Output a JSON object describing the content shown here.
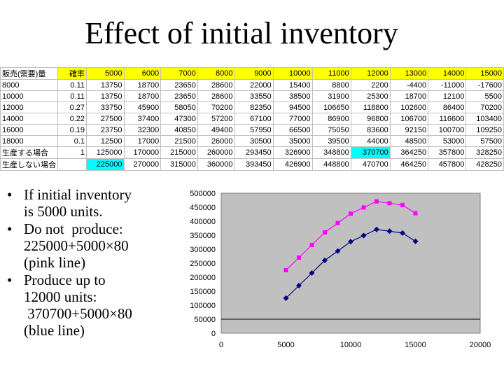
{
  "title": "Effect of initial inventory",
  "table": {
    "header": [
      "販売(需要)量",
      "確率",
      "5000",
      "6000",
      "7000",
      "8000",
      "9000",
      "10000",
      "11000",
      "12000",
      "13000",
      "14000",
      "15000"
    ],
    "rows": [
      [
        "8000",
        "0.11",
        "13750",
        "18700",
        "23650",
        "28600",
        "22000",
        "15400",
        "8800",
        "2200",
        "-4400",
        "-11000",
        "-17600"
      ],
      [
        "10000",
        "0.11",
        "13750",
        "18700",
        "23650",
        "28600",
        "33550",
        "38500",
        "31900",
        "25300",
        "18700",
        "12100",
        "5500"
      ],
      [
        "12000",
        "0.27",
        "33750",
        "45900",
        "58050",
        "70200",
        "82350",
        "94500",
        "106650",
        "118800",
        "102600",
        "86400",
        "70200"
      ],
      [
        "14000",
        "0.22",
        "27500",
        "37400",
        "47300",
        "57200",
        "67100",
        "77000",
        "86900",
        "96800",
        "106700",
        "116600",
        "103400"
      ],
      [
        "16000",
        "0.19",
        "23750",
        "32300",
        "40850",
        "49400",
        "57950",
        "66500",
        "75050",
        "83600",
        "92150",
        "100700",
        "109250"
      ],
      [
        "18000",
        "0.1",
        "12500",
        "17000",
        "21500",
        "26000",
        "30500",
        "35000",
        "39500",
        "44000",
        "48500",
        "53000",
        "57500"
      ],
      [
        "生産する場合",
        "1",
        "125000",
        "170000",
        "215000",
        "260000",
        "293450",
        "326900",
        "348800",
        "370700",
        "364250",
        "357800",
        "328250"
      ],
      [
        "生産しない場合",
        "",
        "225000",
        "270000",
        "315000",
        "360000",
        "393450",
        "426900",
        "448800",
        "470700",
        "464250",
        "457800",
        "428250"
      ]
    ]
  },
  "bullets": [
    {
      "lines": [
        "If initial inventory",
        "is 5000 units."
      ]
    },
    {
      "lines": [
        "Do not  produce:",
        "225000+5000×80",
        "(pink line)"
      ]
    },
    {
      "lines": [
        "Produce up to",
        "12000 units:",
        " 370700+5000×80",
        "(blue line)"
      ]
    }
  ],
  "colors": {
    "highlight_yellow": "#ffff00",
    "highlight_cyan": "#00ffff",
    "plot_bg": "#c0c0c0",
    "pink_series": "#ff00ff",
    "blue_series": "#000080"
  },
  "chart_data": {
    "type": "line",
    "title": "",
    "xlabel": "",
    "ylabel": "",
    "xlim": [
      0,
      20000
    ],
    "ylim": [
      0,
      500000
    ],
    "x_ticks": [
      "0",
      "5000",
      "10000",
      "15000",
      "20000"
    ],
    "y_ticks": [
      "0",
      "50000",
      "100000",
      "150000",
      "200000",
      "250000",
      "300000",
      "350000",
      "400000",
      "450000",
      "500000"
    ],
    "grid": "horizontal line at 50000",
    "legend": "none",
    "series": [
      {
        "color": "#ff00ff",
        "marker": "square",
        "x": [
          5000,
          6000,
          7000,
          8000,
          9000,
          10000,
          11000,
          12000,
          13000,
          14000,
          15000
        ],
        "y": [
          225000,
          270000,
          315000,
          360000,
          393450,
          426900,
          448800,
          470700,
          464250,
          457800,
          428250
        ]
      },
      {
        "color": "#000080",
        "marker": "diamond",
        "x": [
          5000,
          6000,
          7000,
          8000,
          9000,
          10000,
          11000,
          12000,
          13000,
          14000,
          15000
        ],
        "y": [
          125000,
          170000,
          215000,
          260000,
          293450,
          326900,
          348800,
          370700,
          364250,
          357800,
          328250
        ]
      }
    ]
  }
}
